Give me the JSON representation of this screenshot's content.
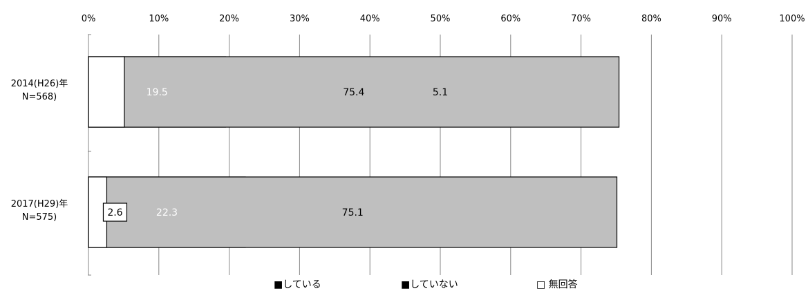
{
  "chart_data": {
    "type": "bar",
    "orientation": "horizontal",
    "stacked": true,
    "percent_scale": true,
    "categories": [
      [
        "2014(H26)年",
        "N=568)"
      ],
      [
        "2017(H29)年",
        "N=575)"
      ]
    ],
    "series": [
      {
        "name": "している",
        "values": [
          19.5,
          22.3
        ],
        "color": "#000000",
        "label_color": "#ffffff"
      },
      {
        "name": "していない",
        "values": [
          75.4,
          75.1
        ],
        "color": "#bfbfbf",
        "label_color": "#000000"
      },
      {
        "name": "無回答",
        "values": [
          5.1,
          2.6
        ],
        "color": "#ffffff",
        "label_color": "#000000"
      }
    ],
    "x_ticks": [
      "0%",
      "10%",
      "20%",
      "30%",
      "40%",
      "50%",
      "60%",
      "70%",
      "80%",
      "90%",
      "100%"
    ],
    "xlim": [
      0,
      100
    ],
    "grid": true,
    "legend_position": "bottom",
    "legend": [
      "■している",
      "■していない",
      "□ 無回答"
    ]
  }
}
